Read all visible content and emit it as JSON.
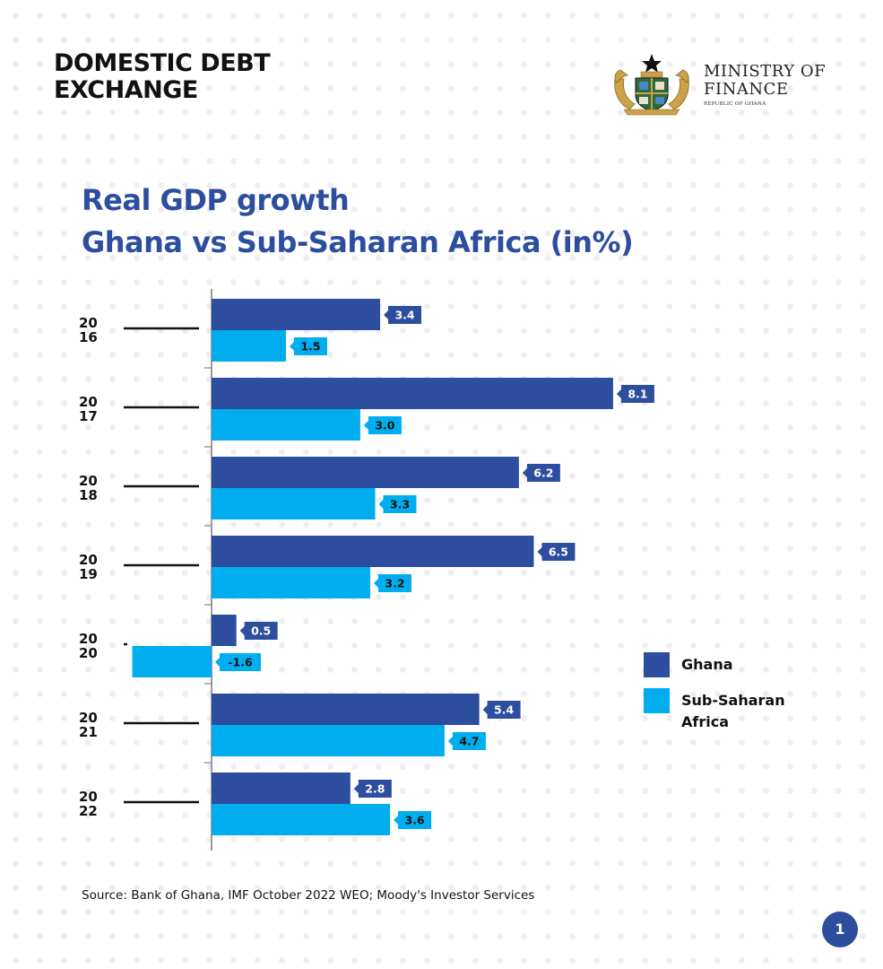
{
  "header": {
    "title_line1": "DOMESTIC DEBT",
    "title_line2": "EXCHANGE"
  },
  "logo": {
    "line1": "MINISTRY OF",
    "line2": "FINANCE",
    "sub": "REPUBLIC OF GHANA",
    "crest_icon": "ghana-coat-of-arms-icon"
  },
  "chart_data": {
    "type": "bar",
    "orientation": "horizontal",
    "title": "Real GDP growth",
    "subtitle": "Ghana vs Sub-Saharan Africa (in%)",
    "categories": [
      [
        "20",
        "16"
      ],
      [
        "20",
        "17"
      ],
      [
        "20",
        "18"
      ],
      [
        "20",
        "19"
      ],
      [
        "20",
        "20"
      ],
      [
        "20",
        "21"
      ],
      [
        "20",
        "22"
      ]
    ],
    "series": [
      {
        "name": "Ghana",
        "color": "#2d4e9f",
        "values": [
          3.4,
          8.1,
          6.2,
          6.5,
          0.5,
          5.4,
          2.8
        ],
        "labels": [
          "3.4",
          "8.1",
          "6.2",
          "6.5",
          "0.5",
          "5.4",
          "2.8"
        ]
      },
      {
        "name": "Sub-Saharan Africa",
        "color": "#00aeef",
        "values": [
          1.5,
          3.0,
          3.3,
          3.2,
          -1.6,
          4.7,
          3.6
        ],
        "labels": [
          "1.5",
          "3.0",
          "3.3",
          "3.2",
          "-1.6",
          "4.7",
          "3.6"
        ]
      }
    ],
    "xlim": [
      -1.6,
      8.1
    ],
    "grid": false,
    "legend": "right",
    "source": "Source: Bank of Ghana, IMF October 2022 WEO; Moody's Investor Services"
  },
  "legend_items": [
    {
      "label": "Ghana",
      "color": "#2d4e9f"
    },
    {
      "label": "Sub-Saharan",
      "label2": "Africa",
      "color": "#00aeef"
    }
  ],
  "page_number": "1"
}
